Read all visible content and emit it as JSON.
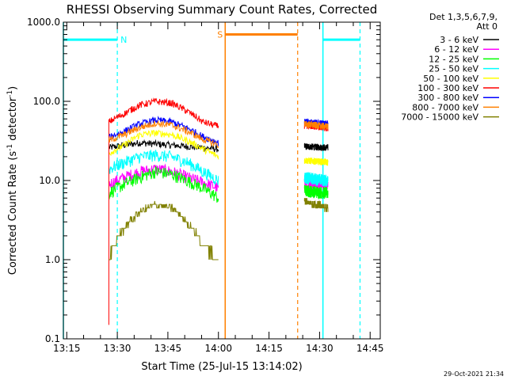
{
  "chart_data": {
    "type": "line",
    "title": "RHESSI Observing Summary Count Rates, Corrected",
    "xlabel": "Start Time (25-Jul-15 13:14:02)",
    "ylabel_main": "Corrected Count Rate (s",
    "ylabel_sup1": "-1",
    "ylabel_mid": " detector",
    "ylabel_sup2": "-1",
    "ylabel_end": ")",
    "ylabel": "Corrected Count Rate (s^-1 detector^-1)",
    "y_scale": "log",
    "ylim": [
      0.1,
      1000
    ],
    "xlim_minutes": [
      0,
      94
    ],
    "x_ticks": [
      {
        "label": "13:15",
        "t": 1
      },
      {
        "label": "13:30",
        "t": 16
      },
      {
        "label": "13:45",
        "t": 31
      },
      {
        "label": "14:00",
        "t": 46
      },
      {
        "label": "14:15",
        "t": 61
      },
      {
        "label": "14:30",
        "t": 76
      },
      {
        "label": "14:45",
        "t": 91
      }
    ],
    "y_ticks": [
      {
        "label": "0.1",
        "v": 0.1
      },
      {
        "label": "1.0",
        "v": 1
      },
      {
        "label": "10.0",
        "v": 10
      },
      {
        "label": "100.0",
        "v": 100
      },
      {
        "label": "1000.0",
        "v": 1000
      }
    ],
    "legend_header1": "Det 1,3,5,6,7,9,",
    "legend_header2": "Att 0",
    "legend_placement": "outside-right",
    "series": [
      {
        "name": "3 - 6 keV",
        "color": "#000000",
        "seg1": [
          26,
          28,
          30,
          29,
          28,
          27,
          26,
          25
        ],
        "seg2": [
          27,
          26
        ]
      },
      {
        "name": "6 - 12 keV",
        "color": "#ff00ff",
        "seg1": [
          9,
          11,
          13,
          14,
          13,
          11,
          9.5,
          8
        ],
        "seg2": [
          9.5,
          9
        ]
      },
      {
        "name": "12 - 25 keV",
        "color": "#00ff00",
        "seg1": [
          7,
          9,
          11,
          13,
          12,
          10,
          8,
          6
        ],
        "seg2": [
          7.5,
          7
        ]
      },
      {
        "name": "25 - 50 keV",
        "color": "#00ffff",
        "seg1": [
          14,
          17,
          20,
          21,
          20,
          17,
          13,
          10
        ],
        "seg2": [
          11,
          10
        ]
      },
      {
        "name": "50 - 100 keV",
        "color": "#ffff00",
        "seg1": [
          22,
          28,
          38,
          40,
          38,
          32,
          25,
          20
        ],
        "seg2": [
          18,
          17
        ]
      },
      {
        "name": "100 - 300 keV",
        "color": "#ff0000",
        "seg1": [
          55,
          70,
          90,
          100,
          95,
          75,
          55,
          48
        ],
        "seg2": [
          50,
          46
        ]
      },
      {
        "name": "300 - 800 keV",
        "color": "#0000ff",
        "seg1": [
          35,
          42,
          52,
          58,
          55,
          46,
          36,
          30
        ],
        "seg2": [
          55,
          52
        ]
      },
      {
        "name": "800 - 7000 keV",
        "color": "#ff8000",
        "seg1": [
          32,
          38,
          47,
          53,
          50,
          42,
          33,
          28
        ],
        "seg2": [
          52,
          48
        ]
      },
      {
        "name": "7000 - 15000 keV",
        "color": "#808000",
        "seg1": [
          1,
          2.5,
          4,
          5,
          4.5,
          3,
          1.5,
          1
        ],
        "seg2": [
          5.5,
          4.5
        ]
      }
    ],
    "segment1_range": [
      13.5,
      46
    ],
    "segment2_range": [
      71.5,
      78.5
    ],
    "segment1_start_spike": 0.15,
    "flags": [
      {
        "label": "N",
        "color": "#00ffff",
        "t_start": 0,
        "t_end": 16,
        "level": 600
      },
      {
        "label": "S",
        "color": "#ff8000",
        "t_start": 48,
        "t_end": 69.5,
        "level": 700
      },
      {
        "label": "",
        "color": "#00ffff",
        "t_start": 77,
        "t_end": 88,
        "level": 600
      }
    ],
    "solid_lines": [
      {
        "t": 0,
        "color": "#00ffff"
      },
      {
        "t": 48,
        "color": "#ff8000"
      },
      {
        "t": 77,
        "color": "#00ffff"
      }
    ],
    "dashed_lines": [
      {
        "t": 16,
        "color": "#00ffff"
      },
      {
        "t": 69.5,
        "color": "#ff8000"
      },
      {
        "t": 88,
        "color": "#00ffff"
      }
    ]
  },
  "footer": {
    "timestamp": "29-Oct-2021 21:34"
  }
}
